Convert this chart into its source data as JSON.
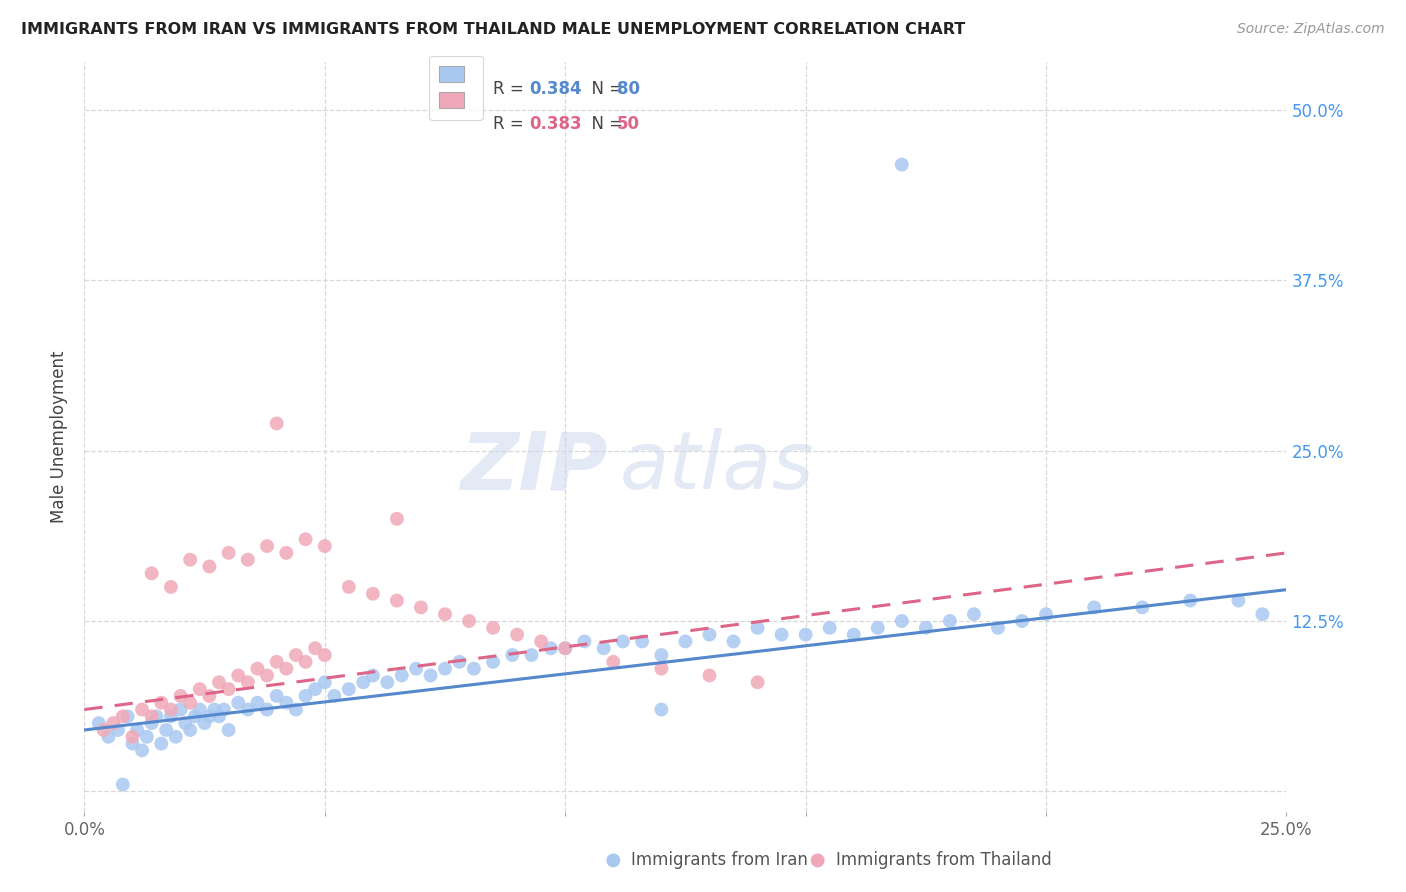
{
  "title": "IMMIGRANTS FROM IRAN VS IMMIGRANTS FROM THAILAND MALE UNEMPLOYMENT CORRELATION CHART",
  "source": "Source: ZipAtlas.com",
  "ylabel": "Male Unemployment",
  "x_min": 0.0,
  "x_max": 0.25,
  "y_min": -0.015,
  "y_max": 0.535,
  "x_ticks": [
    0.0,
    0.05,
    0.1,
    0.15,
    0.2,
    0.25
  ],
  "x_tick_labels": [
    "0.0%",
    "",
    "",
    "",
    "",
    "25.0%"
  ],
  "y_ticks": [
    0.0,
    0.125,
    0.25,
    0.375,
    0.5
  ],
  "y_tick_labels_right": [
    "",
    "12.5%",
    "25.0%",
    "37.5%",
    "50.0%"
  ],
  "grid_color": "#d8d8d8",
  "background_color": "#ffffff",
  "iran_color": "#a8c8f0",
  "iran_color_dark": "#5588cc",
  "thailand_color": "#f0a8b8",
  "thailand_color_dark": "#dd6688",
  "iran_R": "0.384",
  "iran_N": "80",
  "thailand_R": "0.383",
  "thailand_N": "50",
  "watermark_zip": "ZIP",
  "watermark_atlas": "atlas",
  "iran_scatter_x": [
    0.003,
    0.005,
    0.007,
    0.008,
    0.009,
    0.01,
    0.011,
    0.012,
    0.013,
    0.014,
    0.015,
    0.016,
    0.017,
    0.018,
    0.019,
    0.02,
    0.021,
    0.022,
    0.023,
    0.024,
    0.025,
    0.026,
    0.027,
    0.028,
    0.029,
    0.03,
    0.032,
    0.034,
    0.036,
    0.038,
    0.04,
    0.042,
    0.044,
    0.046,
    0.048,
    0.05,
    0.052,
    0.055,
    0.058,
    0.06,
    0.063,
    0.066,
    0.069,
    0.072,
    0.075,
    0.078,
    0.081,
    0.085,
    0.089,
    0.093,
    0.097,
    0.1,
    0.104,
    0.108,
    0.112,
    0.116,
    0.12,
    0.125,
    0.13,
    0.135,
    0.14,
    0.145,
    0.15,
    0.155,
    0.16,
    0.165,
    0.17,
    0.175,
    0.18,
    0.185,
    0.19,
    0.195,
    0.2,
    0.21,
    0.22,
    0.23,
    0.24,
    0.245,
    0.17,
    0.12
  ],
  "iran_scatter_y": [
    0.05,
    0.04,
    0.045,
    0.005,
    0.055,
    0.035,
    0.045,
    0.03,
    0.04,
    0.05,
    0.055,
    0.035,
    0.045,
    0.055,
    0.04,
    0.06,
    0.05,
    0.045,
    0.055,
    0.06,
    0.05,
    0.055,
    0.06,
    0.055,
    0.06,
    0.045,
    0.065,
    0.06,
    0.065,
    0.06,
    0.07,
    0.065,
    0.06,
    0.07,
    0.075,
    0.08,
    0.07,
    0.075,
    0.08,
    0.085,
    0.08,
    0.085,
    0.09,
    0.085,
    0.09,
    0.095,
    0.09,
    0.095,
    0.1,
    0.1,
    0.105,
    0.105,
    0.11,
    0.105,
    0.11,
    0.11,
    0.1,
    0.11,
    0.115,
    0.11,
    0.12,
    0.115,
    0.115,
    0.12,
    0.115,
    0.12,
    0.125,
    0.12,
    0.125,
    0.13,
    0.12,
    0.125,
    0.13,
    0.135,
    0.135,
    0.14,
    0.14,
    0.13,
    0.46,
    0.06
  ],
  "thailand_scatter_x": [
    0.004,
    0.006,
    0.008,
    0.01,
    0.012,
    0.014,
    0.016,
    0.018,
    0.02,
    0.022,
    0.024,
    0.026,
    0.028,
    0.03,
    0.032,
    0.034,
    0.036,
    0.038,
    0.04,
    0.042,
    0.044,
    0.046,
    0.048,
    0.05,
    0.014,
    0.018,
    0.022,
    0.026,
    0.03,
    0.034,
    0.038,
    0.042,
    0.046,
    0.05,
    0.055,
    0.06,
    0.065,
    0.07,
    0.075,
    0.08,
    0.085,
    0.09,
    0.095,
    0.1,
    0.11,
    0.12,
    0.13,
    0.14,
    0.04,
    0.065
  ],
  "thailand_scatter_y": [
    0.045,
    0.05,
    0.055,
    0.04,
    0.06,
    0.055,
    0.065,
    0.06,
    0.07,
    0.065,
    0.075,
    0.07,
    0.08,
    0.075,
    0.085,
    0.08,
    0.09,
    0.085,
    0.095,
    0.09,
    0.1,
    0.095,
    0.105,
    0.1,
    0.16,
    0.15,
    0.17,
    0.165,
    0.175,
    0.17,
    0.18,
    0.175,
    0.185,
    0.18,
    0.15,
    0.145,
    0.14,
    0.135,
    0.13,
    0.125,
    0.12,
    0.115,
    0.11,
    0.105,
    0.095,
    0.09,
    0.085,
    0.08,
    0.27,
    0.2
  ],
  "iran_trend_x": [
    0.0,
    0.25
  ],
  "iran_trend_y": [
    0.045,
    0.148
  ],
  "thailand_trend_x": [
    0.0,
    0.25
  ],
  "thailand_trend_y": [
    0.06,
    0.175
  ],
  "legend_label_iran": "Immigrants from Iran",
  "legend_label_thailand": "Immigrants from Thailand"
}
